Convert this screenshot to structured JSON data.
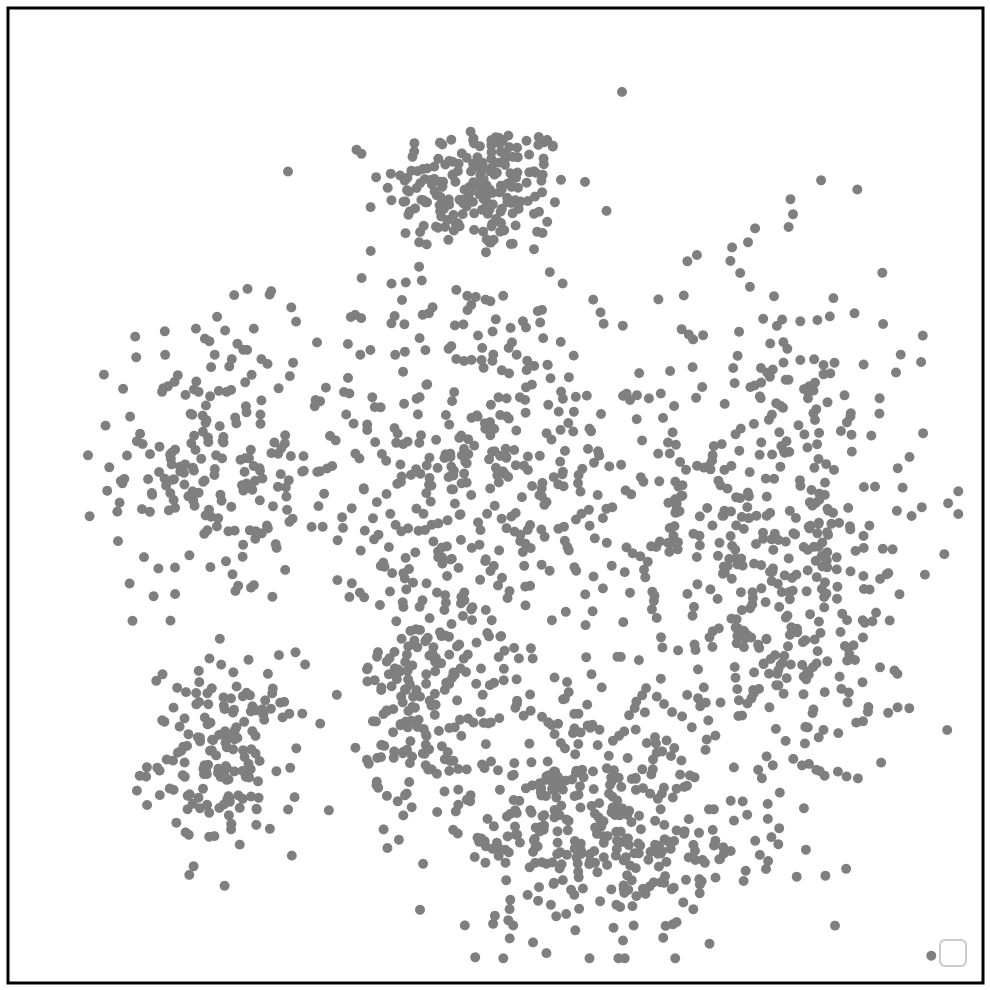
{
  "chart_data": {
    "type": "scatter",
    "title": "",
    "xlabel": "",
    "ylabel": "",
    "axes_visible": false,
    "grid": false,
    "legend": {
      "position": "bottom-right",
      "entries": []
    },
    "xlim": [
      0,
      100
    ],
    "ylim": [
      0,
      100
    ],
    "point_color": "#7f7f7f",
    "series": [
      {
        "clusters": [
          {
            "id": "top",
            "center": [
              48,
              83
            ],
            "spread": [
              5,
              3.5
            ],
            "count": 210
          },
          {
            "id": "upper-left",
            "center": [
              19,
              54
            ],
            "spread": [
              5,
              7.5
            ],
            "count": 175
          },
          {
            "id": "lower-left",
            "center": [
              21,
              22
            ],
            "spread": [
              4,
              5
            ],
            "count": 165
          },
          {
            "id": "center",
            "center": [
              47,
              52
            ],
            "spread": [
              10,
              12
            ],
            "count": 460
          },
          {
            "id": "right",
            "center": [
              80,
              44
            ],
            "spread": [
              8,
              15
            ],
            "count": 520
          },
          {
            "id": "bottom-center",
            "center": [
              59,
              16
            ],
            "spread": [
              7,
              7
            ],
            "count": 330
          },
          {
            "id": "bottom-right-small",
            "center": [
              69,
              10
            ],
            "spread": [
              3,
              3
            ],
            "count": 30
          },
          {
            "id": "left-middle",
            "center": [
              42,
              28
            ],
            "spread": [
              3,
              6
            ],
            "count": 150
          }
        ]
      }
    ]
  }
}
